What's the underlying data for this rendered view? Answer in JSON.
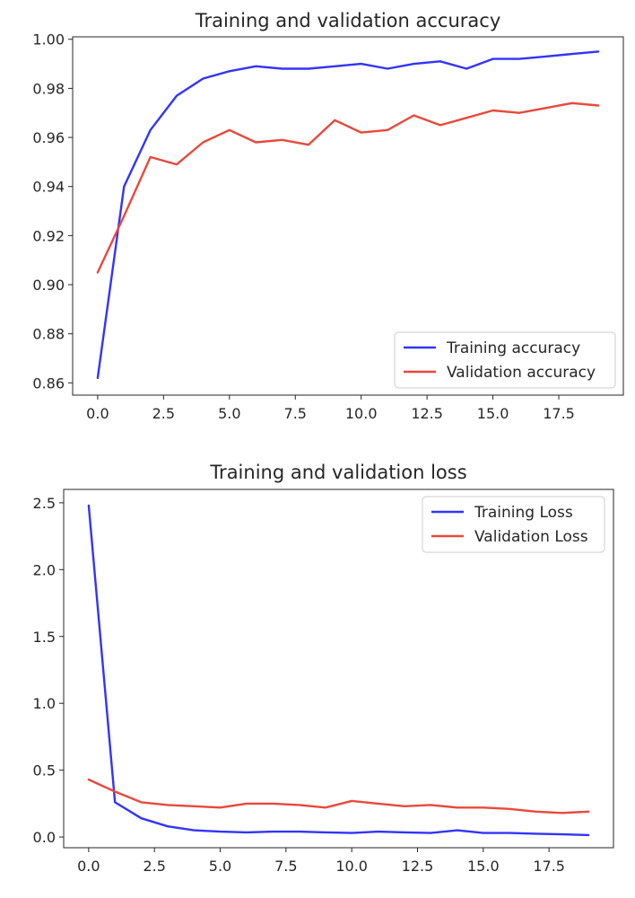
{
  "chart_data": [
    {
      "type": "line",
      "title": "Training and validation accuracy",
      "xlabel": "",
      "ylabel": "",
      "xlim": [
        -0.95,
        19.95
      ],
      "ylim": [
        0.855,
        1.001
      ],
      "x": [
        0,
        1,
        2,
        3,
        4,
        5,
        6,
        7,
        8,
        9,
        10,
        11,
        12,
        13,
        14,
        15,
        16,
        17,
        18,
        19
      ],
      "xticks": [
        0.0,
        2.5,
        5.0,
        7.5,
        10.0,
        12.5,
        15.0,
        17.5
      ],
      "xtick_labels": [
        "0.0",
        "2.5",
        "5.0",
        "7.5",
        "10.0",
        "12.5",
        "15.0",
        "17.5"
      ],
      "yticks": [
        0.86,
        0.88,
        0.9,
        0.92,
        0.94,
        0.96,
        0.98,
        1.0
      ],
      "ytick_labels": [
        "0.86",
        "0.88",
        "0.90",
        "0.92",
        "0.94",
        "0.96",
        "0.98",
        "1.00"
      ],
      "legend_position": "lower-right",
      "series": [
        {
          "name": "Training accuracy",
          "color": "#3333ff",
          "values": [
            0.862,
            0.94,
            0.963,
            0.977,
            0.984,
            0.987,
            0.989,
            0.988,
            0.988,
            0.989,
            0.99,
            0.988,
            0.99,
            0.991,
            0.988,
            0.992,
            0.992,
            0.993,
            0.994,
            0.995
          ]
        },
        {
          "name": "Validation accuracy",
          "color": "#e8493c",
          "values": [
            0.905,
            0.928,
            0.952,
            0.949,
            0.958,
            0.963,
            0.958,
            0.959,
            0.957,
            0.967,
            0.962,
            0.963,
            0.969,
            0.965,
            0.968,
            0.971,
            0.97,
            0.972,
            0.974,
            0.973
          ]
        }
      ]
    },
    {
      "type": "line",
      "title": "Training and validation loss",
      "xlabel": "",
      "ylabel": "",
      "xlim": [
        -0.95,
        19.95
      ],
      "ylim": [
        -0.08,
        2.6
      ],
      "x": [
        0,
        1,
        2,
        3,
        4,
        5,
        6,
        7,
        8,
        9,
        10,
        11,
        12,
        13,
        14,
        15,
        16,
        17,
        18,
        19
      ],
      "xticks": [
        0.0,
        2.5,
        5.0,
        7.5,
        10.0,
        12.5,
        15.0,
        17.5
      ],
      "xtick_labels": [
        "0.0",
        "2.5",
        "5.0",
        "7.5",
        "10.0",
        "12.5",
        "15.0",
        "17.5"
      ],
      "yticks": [
        0.0,
        0.5,
        1.0,
        1.5,
        2.0,
        2.5
      ],
      "ytick_labels": [
        "0.0",
        "0.5",
        "1.0",
        "1.5",
        "2.0",
        "2.5"
      ],
      "legend_position": "upper-right",
      "series": [
        {
          "name": "Training Loss",
          "color": "#3333ff",
          "values": [
            2.48,
            0.26,
            0.14,
            0.08,
            0.05,
            0.04,
            0.035,
            0.04,
            0.04,
            0.035,
            0.03,
            0.04,
            0.035,
            0.03,
            0.05,
            0.03,
            0.03,
            0.025,
            0.02,
            0.015
          ]
        },
        {
          "name": "Validation Loss",
          "color": "#e8493c",
          "values": [
            0.43,
            0.34,
            0.26,
            0.24,
            0.23,
            0.22,
            0.25,
            0.25,
            0.24,
            0.22,
            0.27,
            0.25,
            0.23,
            0.24,
            0.22,
            0.22,
            0.21,
            0.19,
            0.18,
            0.19
          ]
        }
      ]
    }
  ]
}
